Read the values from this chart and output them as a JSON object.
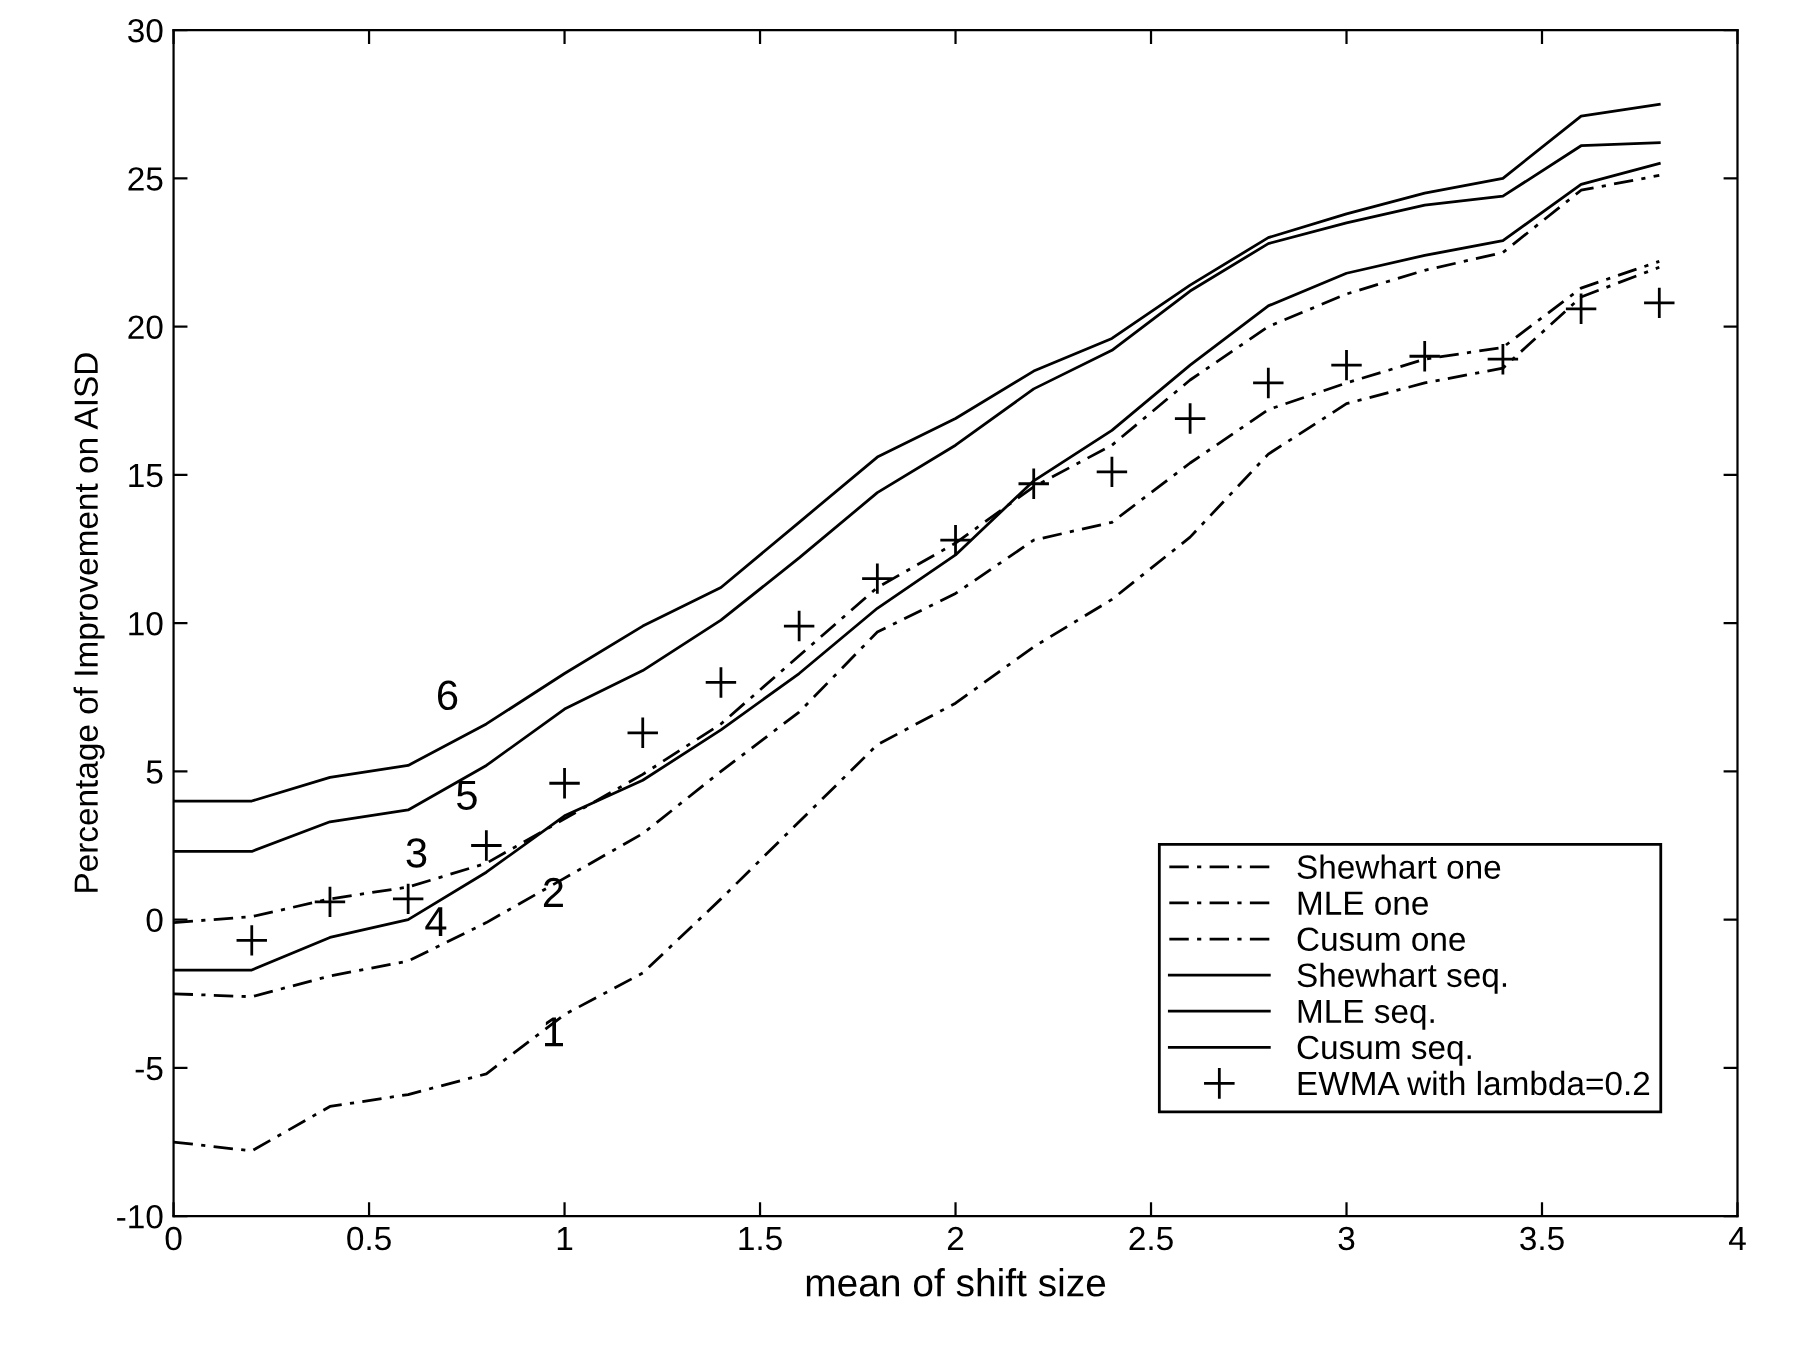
{
  "chart_data": {
    "type": "line",
    "xlabel": "mean of shift size",
    "ylabel": "Percentage of Improvement on AISD",
    "x": [
      0,
      0.2,
      0.4,
      0.6,
      0.8,
      1.0,
      1.2,
      1.4,
      1.6,
      1.8,
      2.0,
      2.2,
      2.4,
      2.6,
      2.8,
      3.0,
      3.2,
      3.4,
      3.6,
      3.8
    ],
    "series": [
      {
        "name": "Shewhart one",
        "color": "#000000",
        "line_style": "dashed",
        "values": [
          -7.5,
          -7.8,
          -6.3,
          -5.9,
          -5.2,
          -3.2,
          -1.8,
          0.7,
          3.3,
          5.9,
          7.3,
          9.2,
          10.8,
          12.9,
          15.7,
          17.4,
          18.1,
          18.6,
          21.0,
          22.0
        ]
      },
      {
        "name": "MLE one",
        "color": "#000000",
        "line_style": "dashed",
        "values": [
          -2.5,
          -2.6,
          -1.9,
          -1.4,
          -0.1,
          1.4,
          2.9,
          5.0,
          7.0,
          9.7,
          11.0,
          12.8,
          13.4,
          15.4,
          17.2,
          18.1,
          18.9,
          19.3,
          21.3,
          22.2
        ]
      },
      {
        "name": "Cusum one",
        "color": "#000000",
        "line_style": "dashed",
        "values": [
          -0.1,
          0.1,
          0.7,
          1.1,
          1.9,
          3.4,
          4.9,
          6.6,
          8.9,
          11.2,
          12.7,
          14.6,
          16.0,
          18.2,
          20.0,
          21.1,
          21.9,
          22.5,
          24.6,
          25.1
        ]
      },
      {
        "name": "Shewhart seq.",
        "color": "#000000",
        "line_style": "solid",
        "values": [
          -1.7,
          -1.7,
          -0.6,
          0.0,
          1.6,
          3.5,
          4.7,
          6.4,
          8.3,
          10.5,
          12.3,
          14.8,
          16.5,
          18.7,
          20.7,
          21.8,
          22.4,
          22.9,
          24.8,
          25.5
        ]
      },
      {
        "name": "MLE seq.",
        "color": "#000000",
        "line_style": "solid",
        "values": [
          2.3,
          2.3,
          3.3,
          3.7,
          5.2,
          7.1,
          8.4,
          10.1,
          12.2,
          14.4,
          16.0,
          17.9,
          19.2,
          21.2,
          22.8,
          23.5,
          24.1,
          24.4,
          26.1,
          26.2
        ]
      },
      {
        "name": "Cusum seq.",
        "color": "#000000",
        "line_style": "solid",
        "values": [
          4.0,
          4.0,
          4.8,
          5.2,
          6.6,
          8.3,
          9.9,
          11.2,
          13.4,
          15.6,
          16.9,
          18.5,
          19.6,
          21.4,
          23.0,
          23.8,
          24.5,
          25.0,
          27.1,
          27.5
        ]
      },
      {
        "name": "EWMA with lambda=0.2",
        "type": "scatter",
        "marker": "cross",
        "color": "#000000",
        "x": [
          0.2,
          0.4,
          0.6,
          0.8,
          1.0,
          1.2,
          1.4,
          1.6,
          1.8,
          2.0,
          2.2,
          2.4,
          2.6,
          2.8,
          3.0,
          3.2,
          3.4,
          3.6,
          3.8
        ],
        "values": [
          -0.7,
          0.6,
          0.7,
          2.5,
          4.6,
          6.3,
          8.0,
          9.9,
          11.5,
          12.8,
          14.7,
          15.1,
          16.9,
          18.1,
          18.7,
          19.0,
          18.9,
          20.6,
          20.8
        ]
      }
    ],
    "annotations": [
      {
        "text": "1",
        "x": 1.0,
        "y": -3.2
      },
      {
        "text": "2",
        "x": 1.0,
        "y": 1.4
      },
      {
        "text": "3",
        "x": 0.6,
        "y": 1.1
      },
      {
        "text": "4",
        "x": 0.6,
        "y": 0.0
      },
      {
        "text": "5",
        "x": 0.8,
        "y": 5.2
      },
      {
        "text": "6",
        "x": 0.8,
        "y": 6.6
      }
    ],
    "xlim": [
      0,
      4
    ],
    "xticks": [
      0,
      0.5,
      1,
      1.5,
      2,
      2.5,
      3,
      3.5,
      4
    ],
    "ylim": [
      -10,
      30
    ],
    "yticks": [
      -10,
      -5,
      0,
      5,
      10,
      15,
      20,
      25,
      30
    ],
    "legend": "bottom right",
    "grid": false
  }
}
